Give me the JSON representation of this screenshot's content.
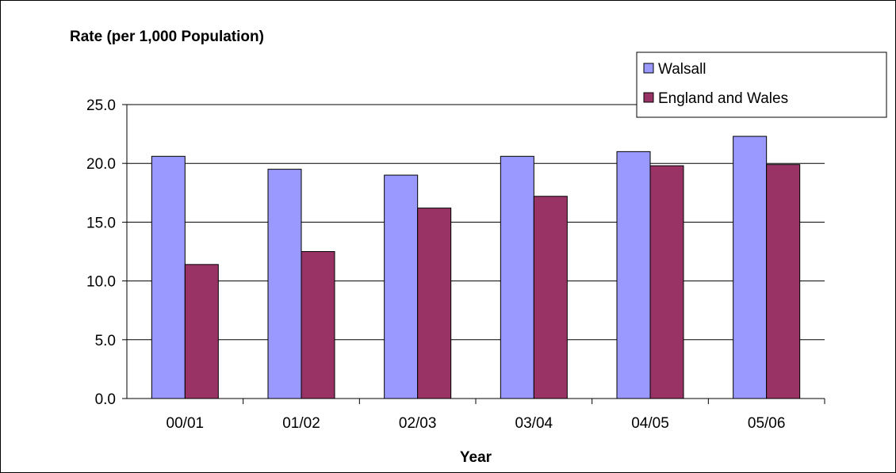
{
  "chart_data": {
    "type": "bar",
    "ylabel": "Rate (per 1,000 Population)",
    "xlabel": "Year",
    "categories": [
      "00/01",
      "01/02",
      "02/03",
      "03/04",
      "04/05",
      "05/06"
    ],
    "series": [
      {
        "name": "Walsall",
        "color": "#9999FF",
        "values": [
          20.6,
          19.5,
          19.0,
          20.6,
          21.0,
          22.3
        ]
      },
      {
        "name": "England and Wales",
        "color": "#993366",
        "values": [
          11.4,
          12.5,
          16.2,
          17.2,
          19.8,
          19.9
        ]
      }
    ],
    "ylim": [
      0,
      25
    ],
    "yticks": [
      "0.0",
      "5.0",
      "10.0",
      "15.0",
      "20.0",
      "25.0"
    ],
    "grid": true,
    "legend_position": "top-right"
  }
}
